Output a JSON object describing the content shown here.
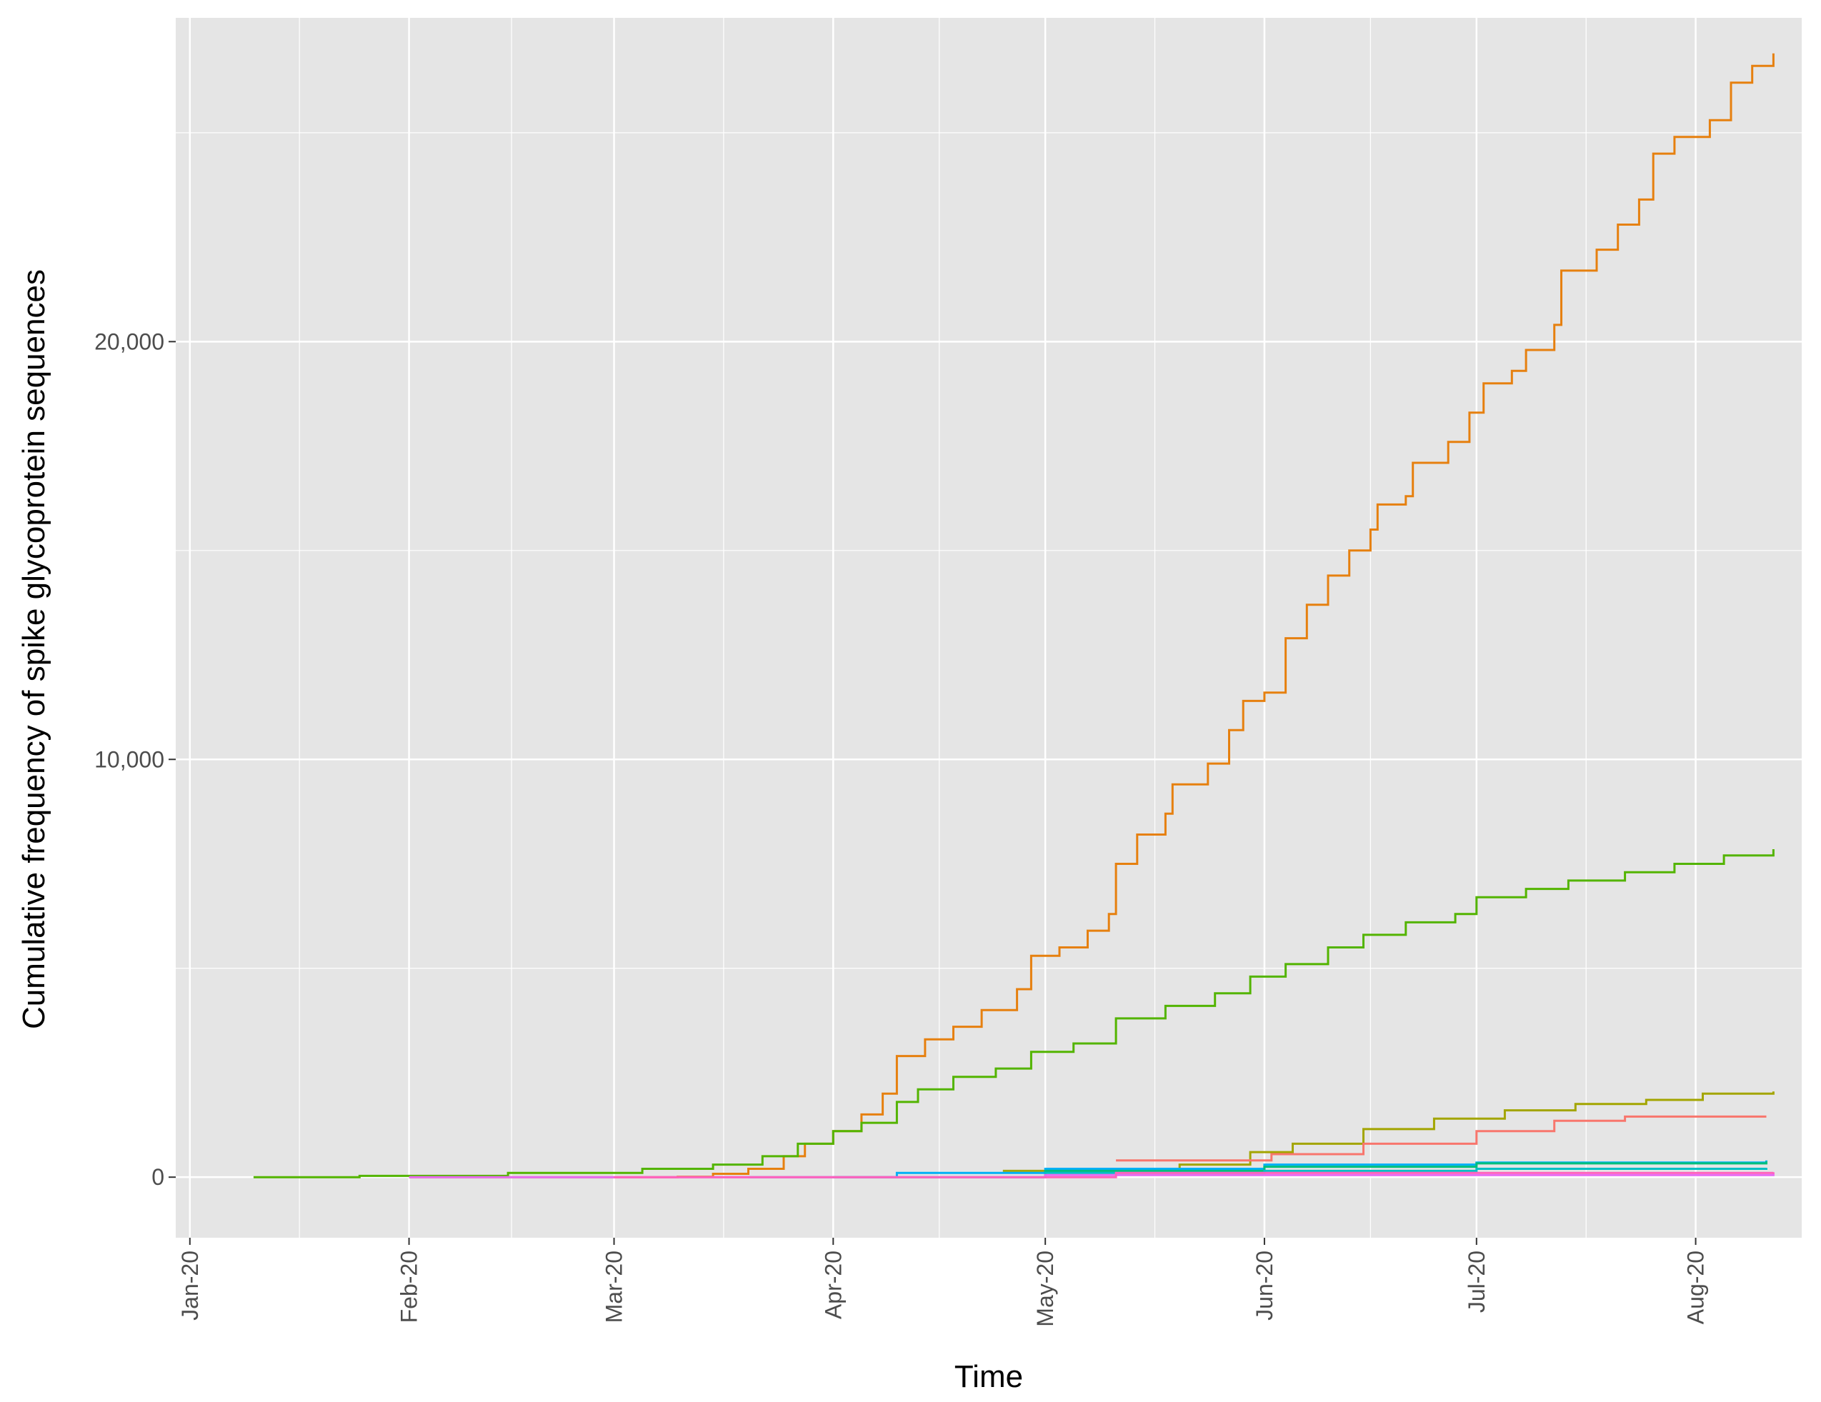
{
  "chart_data": {
    "type": "line",
    "step": true,
    "xlabel": "Time",
    "ylabel": "Cumulative frequency of spike glycoprotein sequences",
    "x_ticks": [
      "Jan-20",
      "Feb-20",
      "Mar-20",
      "Apr-20",
      "May-20",
      "Jun-20",
      "Jul-20",
      "Aug-20"
    ],
    "x_tick_dates": [
      "2020-01-01",
      "2020-02-01",
      "2020-03-01",
      "2020-04-01",
      "2020-05-01",
      "2020-06-01",
      "2020-07-01",
      "2020-08-01"
    ],
    "y_ticks": [
      "0",
      "10,000",
      "20,000"
    ],
    "y_tick_values": [
      0,
      10000,
      20000
    ],
    "xlim": [
      "2019-12-30",
      "2020-08-16"
    ],
    "ylim": [
      -1450,
      27750
    ],
    "grid": true,
    "legend": "none",
    "panel_background": "#e5e5e5",
    "grid_color": "#ffffff",
    "series": [
      {
        "color": "#e6800f",
        "values": [
          [
            "2020-02-01",
            0
          ],
          [
            "2020-03-01",
            0
          ],
          [
            "2020-03-10",
            10
          ],
          [
            "2020-03-15",
            80
          ],
          [
            "2020-03-20",
            200
          ],
          [
            "2020-03-25",
            500
          ],
          [
            "2020-03-28",
            800
          ],
          [
            "2020-04-01",
            1100
          ],
          [
            "2020-04-05",
            1500
          ],
          [
            "2020-04-08",
            2000
          ],
          [
            "2020-04-10",
            2900
          ],
          [
            "2020-04-14",
            3300
          ],
          [
            "2020-04-18",
            3600
          ],
          [
            "2020-04-22",
            4000
          ],
          [
            "2020-04-27",
            4500
          ],
          [
            "2020-04-29",
            5300
          ],
          [
            "2020-05-03",
            5500
          ],
          [
            "2020-05-07",
            5900
          ],
          [
            "2020-05-10",
            6300
          ],
          [
            "2020-05-11",
            7500
          ],
          [
            "2020-05-14",
            8200
          ],
          [
            "2020-05-18",
            8700
          ],
          [
            "2020-05-19",
            9400
          ],
          [
            "2020-05-24",
            9900
          ],
          [
            "2020-05-27",
            10700
          ],
          [
            "2020-05-29",
            11400
          ],
          [
            "2020-06-01",
            11600
          ],
          [
            "2020-06-04",
            12900
          ],
          [
            "2020-06-07",
            13700
          ],
          [
            "2020-06-10",
            14400
          ],
          [
            "2020-06-13",
            15000
          ],
          [
            "2020-06-16",
            15500
          ],
          [
            "2020-06-17",
            16100
          ],
          [
            "2020-06-21",
            16300
          ],
          [
            "2020-06-22",
            17100
          ],
          [
            "2020-06-27",
            17600
          ],
          [
            "2020-06-30",
            18300
          ],
          [
            "2020-07-02",
            19000
          ],
          [
            "2020-07-06",
            19300
          ],
          [
            "2020-07-08",
            19800
          ],
          [
            "2020-07-12",
            20400
          ],
          [
            "2020-07-13",
            21700
          ],
          [
            "2020-07-18",
            22200
          ],
          [
            "2020-07-21",
            22800
          ],
          [
            "2020-07-24",
            23400
          ],
          [
            "2020-07-26",
            24500
          ],
          [
            "2020-07-29",
            24900
          ],
          [
            "2020-08-03",
            25300
          ],
          [
            "2020-08-06",
            26200
          ],
          [
            "2020-08-09",
            26600
          ],
          [
            "2020-08-12",
            26900
          ]
        ]
      },
      {
        "color": "#53b400",
        "values": [
          [
            "2020-01-10",
            0
          ],
          [
            "2020-01-25",
            30
          ],
          [
            "2020-02-15",
            100
          ],
          [
            "2020-03-05",
            200
          ],
          [
            "2020-03-15",
            300
          ],
          [
            "2020-03-22",
            500
          ],
          [
            "2020-03-27",
            800
          ],
          [
            "2020-04-01",
            1100
          ],
          [
            "2020-04-05",
            1300
          ],
          [
            "2020-04-10",
            1800
          ],
          [
            "2020-04-13",
            2100
          ],
          [
            "2020-04-18",
            2400
          ],
          [
            "2020-04-24",
            2600
          ],
          [
            "2020-04-29",
            3000
          ],
          [
            "2020-05-05",
            3200
          ],
          [
            "2020-05-11",
            3800
          ],
          [
            "2020-05-18",
            4100
          ],
          [
            "2020-05-25",
            4400
          ],
          [
            "2020-05-30",
            4800
          ],
          [
            "2020-06-04",
            5100
          ],
          [
            "2020-06-10",
            5500
          ],
          [
            "2020-06-15",
            5800
          ],
          [
            "2020-06-21",
            6100
          ],
          [
            "2020-06-28",
            6300
          ],
          [
            "2020-07-01",
            6700
          ],
          [
            "2020-07-08",
            6900
          ],
          [
            "2020-07-14",
            7100
          ],
          [
            "2020-07-22",
            7300
          ],
          [
            "2020-07-29",
            7500
          ],
          [
            "2020-08-05",
            7700
          ],
          [
            "2020-08-12",
            7850
          ]
        ]
      },
      {
        "color": "#a3a500",
        "values": [
          [
            "2020-04-25",
            150
          ],
          [
            "2020-05-20",
            300
          ],
          [
            "2020-05-30",
            600
          ],
          [
            "2020-06-05",
            800
          ],
          [
            "2020-06-15",
            1150
          ],
          [
            "2020-06-25",
            1400
          ],
          [
            "2020-07-05",
            1600
          ],
          [
            "2020-07-15",
            1750
          ],
          [
            "2020-07-25",
            1850
          ],
          [
            "2020-08-02",
            2000
          ],
          [
            "2020-08-12",
            2050
          ]
        ]
      },
      {
        "color": "#f8766d",
        "values": [
          [
            "2020-05-11",
            400
          ],
          [
            "2020-06-02",
            550
          ],
          [
            "2020-06-15",
            800
          ],
          [
            "2020-07-01",
            1100
          ],
          [
            "2020-07-12",
            1350
          ],
          [
            "2020-07-22",
            1450
          ],
          [
            "2020-08-11",
            1450
          ]
        ]
      },
      {
        "color": "#00b0f6",
        "values": [
          [
            "2020-03-20",
            0
          ],
          [
            "2020-04-10",
            100
          ],
          [
            "2020-05-01",
            200
          ],
          [
            "2020-06-01",
            300
          ],
          [
            "2020-07-01",
            350
          ],
          [
            "2020-08-11",
            400
          ]
        ]
      },
      {
        "color": "#00bf7d",
        "values": [
          [
            "2020-04-01",
            0
          ],
          [
            "2020-05-01",
            150
          ],
          [
            "2020-06-01",
            250
          ],
          [
            "2020-07-01",
            330
          ],
          [
            "2020-08-11",
            380
          ]
        ]
      },
      {
        "color": "#00bfc4",
        "values": [
          [
            "2020-04-01",
            0
          ],
          [
            "2020-05-01",
            100
          ],
          [
            "2020-06-01",
            150
          ],
          [
            "2020-07-01",
            200
          ],
          [
            "2020-08-11",
            220
          ]
        ]
      },
      {
        "color": "#e76bf3",
        "values": [
          [
            "2020-02-01",
            0
          ],
          [
            "2020-05-01",
            50
          ],
          [
            "2020-08-12",
            80
          ]
        ]
      },
      {
        "color": "#ff62bc",
        "values": [
          [
            "2020-03-01",
            0
          ],
          [
            "2020-05-11",
            100
          ],
          [
            "2020-08-12",
            120
          ]
        ]
      }
    ]
  }
}
